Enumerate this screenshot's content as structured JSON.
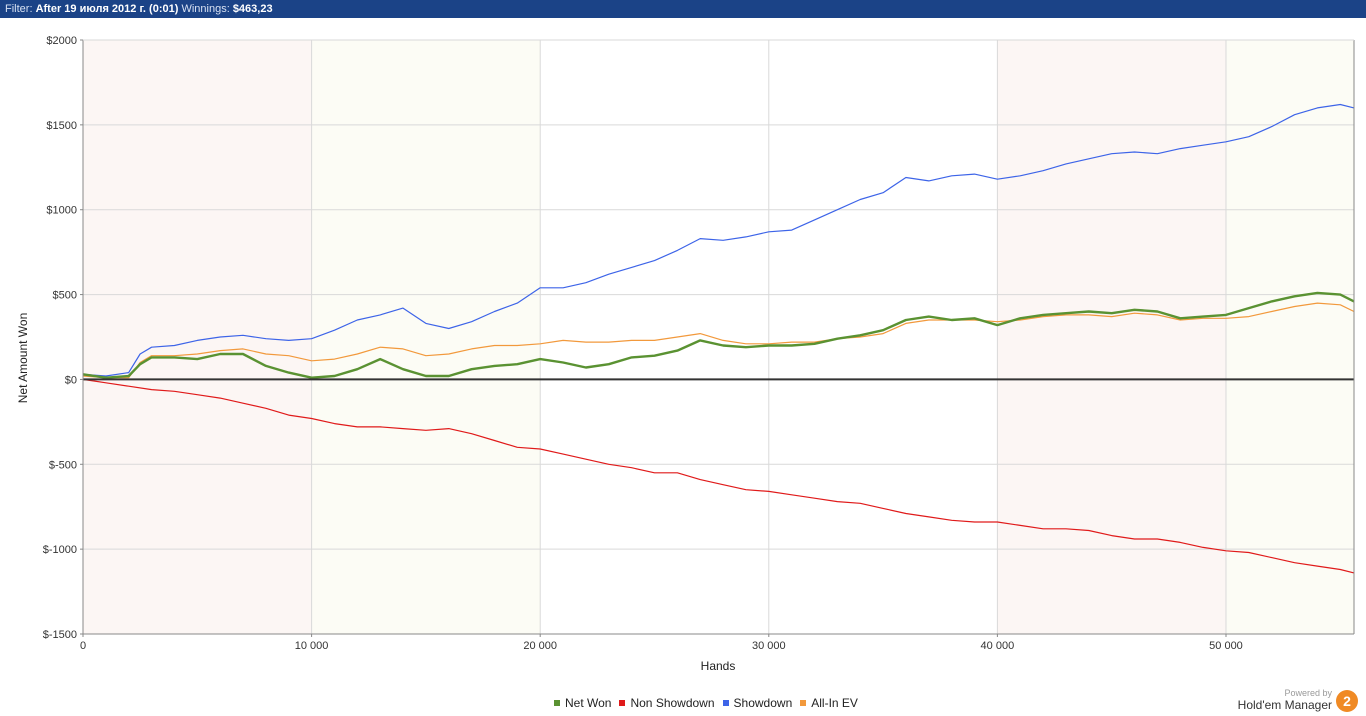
{
  "filter_bar": {
    "filter_label": "Filter:",
    "filter_value": "After 19 июля 2012 г. (0:01)",
    "winnings_label": "Winnings:",
    "winnings_value": "$463,23"
  },
  "chart_data": {
    "type": "line",
    "title": "",
    "xlabel": "Hands",
    "ylabel": "Net Amount Won",
    "xlim": [
      0,
      55600
    ],
    "ylim": [
      -1500,
      2000
    ],
    "x_ticks": [
      0,
      10000,
      20000,
      30000,
      40000,
      50000
    ],
    "x_tick_labels": [
      "0",
      "10 000",
      "20 000",
      "30 000",
      "40 000",
      "50 000"
    ],
    "y_ticks": [
      2000,
      1500,
      1000,
      500,
      0,
      -500,
      -1000,
      -1500
    ],
    "y_tick_labels": [
      "$2000",
      "$1500",
      "$1000",
      "$500",
      "$0",
      "$-500",
      "$-1000",
      "$-1500"
    ],
    "grid": true,
    "legend_position": "bottom-center",
    "band_colors": [
      "#fcf6f4",
      "#fcfcf5"
    ],
    "series": [
      {
        "name": "Showdown",
        "color": "#3d64e8",
        "x": [
          0,
          1000,
          2000,
          2500,
          3000,
          4000,
          5000,
          6000,
          7000,
          8000,
          9000,
          10000,
          11000,
          12000,
          13000,
          14000,
          15000,
          16000,
          17000,
          18000,
          19000,
          20000,
          21000,
          22000,
          23000,
          24000,
          25000,
          26000,
          27000,
          28000,
          29000,
          30000,
          31000,
          32000,
          33000,
          34000,
          35000,
          36000,
          37000,
          38000,
          39000,
          40000,
          41000,
          42000,
          43000,
          44000,
          45000,
          46000,
          47000,
          48000,
          49000,
          50000,
          51000,
          52000,
          53000,
          54000,
          55000,
          55600
        ],
        "y": [
          30,
          20,
          40,
          150,
          190,
          200,
          230,
          250,
          260,
          240,
          230,
          240,
          290,
          350,
          380,
          420,
          330,
          300,
          340,
          400,
          450,
          540,
          540,
          570,
          620,
          660,
          700,
          760,
          830,
          820,
          840,
          870,
          880,
          940,
          1000,
          1060,
          1100,
          1190,
          1170,
          1200,
          1210,
          1180,
          1200,
          1230,
          1270,
          1300,
          1330,
          1340,
          1330,
          1360,
          1380,
          1400,
          1430,
          1490,
          1560,
          1600,
          1620,
          1600
        ]
      },
      {
        "name": "All-In EV",
        "color": "#f2993c",
        "x": [
          0,
          1000,
          2000,
          2500,
          3000,
          4000,
          5000,
          6000,
          7000,
          8000,
          9000,
          10000,
          11000,
          12000,
          13000,
          14000,
          15000,
          16000,
          17000,
          18000,
          19000,
          20000,
          21000,
          22000,
          23000,
          24000,
          25000,
          26000,
          27000,
          28000,
          29000,
          30000,
          31000,
          32000,
          33000,
          34000,
          35000,
          36000,
          37000,
          38000,
          39000,
          40000,
          41000,
          42000,
          43000,
          44000,
          45000,
          46000,
          47000,
          48000,
          49000,
          50000,
          51000,
          52000,
          53000,
          54000,
          55000,
          55600
        ],
        "y": [
          20,
          10,
          10,
          100,
          140,
          140,
          150,
          170,
          180,
          150,
          140,
          110,
          120,
          150,
          190,
          180,
          140,
          150,
          180,
          200,
          200,
          210,
          230,
          220,
          220,
          230,
          230,
          250,
          270,
          230,
          210,
          210,
          220,
          220,
          240,
          250,
          270,
          330,
          350,
          350,
          350,
          340,
          350,
          370,
          380,
          380,
          370,
          390,
          380,
          350,
          360,
          360,
          370,
          400,
          430,
          450,
          440,
          400
        ]
      },
      {
        "name": "Net Won",
        "color": "#5a9232",
        "x": [
          0,
          1000,
          2000,
          2500,
          3000,
          4000,
          5000,
          6000,
          7000,
          8000,
          9000,
          10000,
          11000,
          12000,
          13000,
          14000,
          15000,
          16000,
          17000,
          18000,
          19000,
          20000,
          21000,
          22000,
          23000,
          24000,
          25000,
          26000,
          27000,
          28000,
          29000,
          30000,
          31000,
          32000,
          33000,
          34000,
          35000,
          36000,
          37000,
          38000,
          39000,
          40000,
          41000,
          42000,
          43000,
          44000,
          45000,
          46000,
          47000,
          48000,
          49000,
          50000,
          51000,
          52000,
          53000,
          54000,
          55000,
          55600
        ],
        "y": [
          30,
          10,
          20,
          90,
          130,
          130,
          120,
          150,
          150,
          80,
          40,
          10,
          20,
          60,
          120,
          60,
          20,
          20,
          60,
          80,
          90,
          120,
          100,
          70,
          90,
          130,
          140,
          170,
          230,
          200,
          190,
          200,
          200,
          210,
          240,
          260,
          290,
          350,
          370,
          350,
          360,
          320,
          360,
          380,
          390,
          400,
          390,
          410,
          400,
          360,
          370,
          380,
          420,
          460,
          490,
          510,
          500,
          460
        ]
      },
      {
        "name": "Non Showdown",
        "color": "#e01a1a",
        "x": [
          0,
          1000,
          2000,
          3000,
          4000,
          5000,
          6000,
          7000,
          8000,
          9000,
          10000,
          11000,
          12000,
          13000,
          14000,
          15000,
          16000,
          17000,
          18000,
          19000,
          20000,
          21000,
          22000,
          23000,
          24000,
          25000,
          26000,
          27000,
          28000,
          29000,
          30000,
          31000,
          32000,
          33000,
          34000,
          35000,
          36000,
          37000,
          38000,
          39000,
          40000,
          41000,
          42000,
          43000,
          44000,
          45000,
          46000,
          47000,
          48000,
          49000,
          50000,
          51000,
          52000,
          53000,
          54000,
          55000,
          55600
        ],
        "y": [
          0,
          -20,
          -40,
          -60,
          -70,
          -90,
          -110,
          -140,
          -170,
          -210,
          -230,
          -260,
          -280,
          -280,
          -290,
          -300,
          -290,
          -320,
          -360,
          -400,
          -410,
          -440,
          -470,
          -500,
          -520,
          -550,
          -550,
          -590,
          -620,
          -650,
          -660,
          -680,
          -700,
          -720,
          -730,
          -760,
          -790,
          -810,
          -830,
          -840,
          -840,
          -860,
          -880,
          -880,
          -890,
          -920,
          -940,
          -940,
          -960,
          -990,
          -1010,
          -1020,
          -1050,
          -1080,
          -1100,
          -1120,
          -1140
        ]
      }
    ]
  },
  "legend": {
    "items": [
      {
        "name": "Net Won",
        "color": "#5a9232"
      },
      {
        "name": "Non Showdown",
        "color": "#e01a1a"
      },
      {
        "name": "Showdown",
        "color": "#3d64e8"
      },
      {
        "name": "All-In EV",
        "color": "#f2993c"
      }
    ]
  },
  "branding": {
    "powered_by": "Powered by",
    "product": "Hold'em Manager",
    "logo_glyph": "2"
  }
}
